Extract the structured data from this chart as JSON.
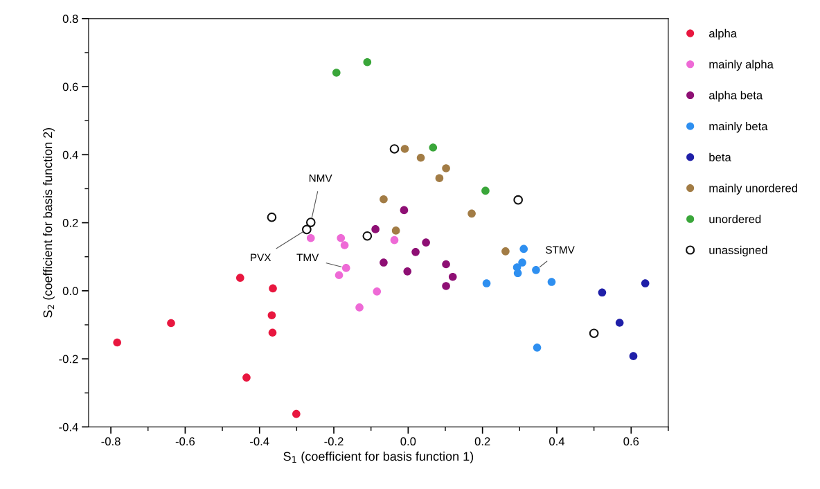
{
  "chart_data": {
    "type": "scatter",
    "xlabel": "S$_{1}$ (coefficient for basis function 1)",
    "ylabel": "S$_{2}$ (coefficient for basis function 2)",
    "xlim": [
      -0.86,
      0.7
    ],
    "ylim": [
      -0.4,
      0.8
    ],
    "xticks": [
      -0.8,
      -0.6,
      -0.4,
      -0.2,
      {
        "value": 0,
        "label": "0.0"
      },
      0.2,
      0.4,
      0.6
    ],
    "yticks": [
      -0.4,
      -0.2,
      {
        "value": 0,
        "label": "0.0"
      },
      0.2,
      0.4,
      0.6,
      0.8
    ],
    "grid": false,
    "legend": "right",
    "marker": "circle",
    "series": [
      {
        "name": "alpha",
        "color": "#e8173f",
        "x": [
          -0.452,
          -0.364,
          -0.367,
          -0.365,
          -0.638,
          -0.783,
          -0.435,
          -0.301
        ],
        "values": [
          0.038,
          0.007,
          -0.072,
          -0.123,
          -0.095,
          -0.152,
          -0.255,
          -0.362
        ]
      },
      {
        "name": "mainly alpha",
        "color": "#ee6ad6",
        "x": [
          -0.262,
          -0.181,
          -0.171,
          -0.167,
          -0.186,
          -0.131,
          -0.084,
          -0.037
        ],
        "values": [
          0.155,
          0.155,
          0.134,
          0.067,
          0.046,
          -0.049,
          -0.002,
          0.149
        ]
      },
      {
        "name": "alpha beta",
        "color": "#8e0f74",
        "x": [
          -0.088,
          -0.011,
          -0.066,
          -0.002,
          0.02,
          0.048,
          0.102,
          0.12,
          0.102
        ],
        "values": [
          0.181,
          0.237,
          0.083,
          0.057,
          0.114,
          0.142,
          0.078,
          0.041,
          0.014
        ]
      },
      {
        "name": "mainly beta",
        "color": "#2e8ff0",
        "x": [
          0.311,
          0.307,
          0.293,
          0.295,
          0.344,
          0.386,
          0.211,
          0.347
        ],
        "values": [
          0.123,
          0.083,
          0.069,
          0.052,
          0.061,
          0.026,
          0.022,
          -0.167
        ]
      },
      {
        "name": "beta",
        "color": "#1f1fa8",
        "x": [
          0.522,
          0.638,
          0.569,
          0.606
        ],
        "values": [
          -0.005,
          0.022,
          -0.094,
          -0.192
        ]
      },
      {
        "name": "mainly unordered",
        "color": "#a27c45",
        "x": [
          -0.009,
          0.034,
          0.102,
          0.084,
          -0.066,
          0.171,
          -0.033,
          0.262
        ],
        "values": [
          0.417,
          0.391,
          0.36,
          0.331,
          0.269,
          0.227,
          0.177,
          0.116
        ]
      },
      {
        "name": "unordered",
        "color": "#3aa63a",
        "x": [
          -0.193,
          -0.11,
          0.067,
          0.208
        ],
        "values": [
          0.641,
          0.672,
          0.421,
          0.294
        ]
      },
      {
        "name": "unassigned",
        "color": "#111111",
        "marker": "open circle",
        "x": [
          -0.367,
          -0.262,
          -0.273,
          -0.11,
          -0.037,
          0.296,
          0.5
        ],
        "values": [
          0.216,
          0.201,
          0.18,
          0.161,
          0.417,
          0.267,
          -0.125
        ]
      }
    ],
    "annotations": [
      {
        "text": "NMV",
        "x": -0.262,
        "y": 0.201
      },
      {
        "text": "PVX",
        "x": -0.273,
        "y": 0.18
      },
      {
        "text": "TMV",
        "x": -0.167,
        "y": 0.067
      },
      {
        "text": "STMV",
        "x": 0.344,
        "y": 0.061
      }
    ]
  }
}
